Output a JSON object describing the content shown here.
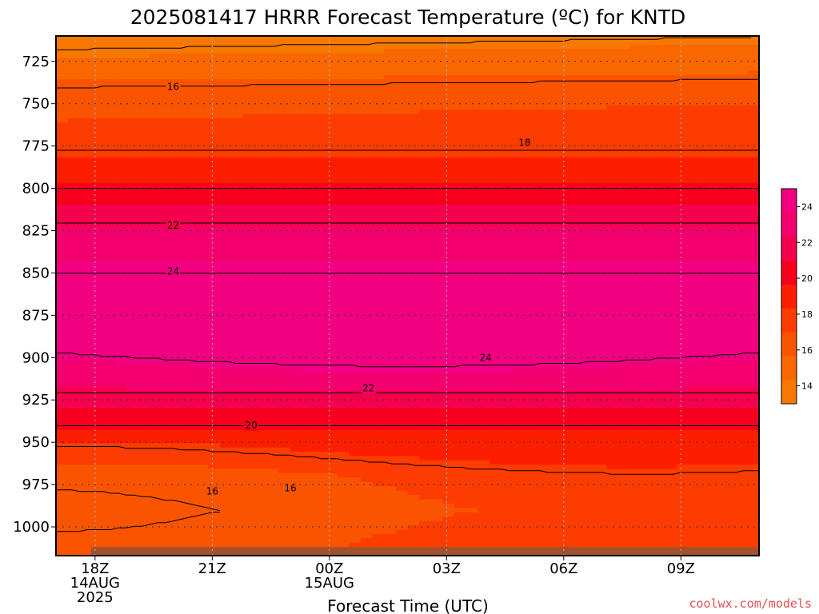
{
  "chart_data": {
    "type": "heatmap",
    "title": "2025081417 HRRR Forecast Temperature (ºC) for KNTD",
    "xlabel": "Forecast Time (UTC)",
    "ylabel": "",
    "x_ticks": [
      {
        "label": "18Z",
        "sub": [
          "14AUG",
          "2025"
        ],
        "hours": 0
      },
      {
        "label": "21Z",
        "sub": [],
        "hours": 3
      },
      {
        "label": "00Z",
        "sub": [
          "15AUG"
        ],
        "hours": 6
      },
      {
        "label": "03Z",
        "sub": [],
        "hours": 9
      },
      {
        "label": "06Z",
        "sub": [],
        "hours": 12
      },
      {
        "label": "09Z",
        "sub": [],
        "hours": 15
      }
    ],
    "xlim_hours": [
      -1,
      17
    ],
    "y_ticks": [
      725,
      750,
      775,
      800,
      825,
      850,
      875,
      900,
      925,
      950,
      975,
      1000
    ],
    "ylim_hpa": [
      710,
      1017
    ],
    "y_inverted": true,
    "grid": true,
    "colorbar": {
      "ticks": [
        "14",
        "16",
        "18",
        "20",
        "22",
        "24"
      ],
      "levels": [
        13,
        14,
        15,
        16,
        17,
        18,
        19,
        20,
        21,
        22,
        23,
        24,
        25
      ],
      "colors": [
        "#f77800",
        "#f96800",
        "#fb5400",
        "#fc3c00",
        "#fd1e00",
        "#f7001e",
        "#f5004c",
        "#f3006e",
        "#f10080"
      ]
    },
    "contour_labels": [
      {
        "text": "16",
        "hours": 2,
        "hpa": 740
      },
      {
        "text": "18",
        "hours": 11,
        "hpa": 773
      },
      {
        "text": "22",
        "hours": 2,
        "hpa": 822
      },
      {
        "text": "24",
        "hours": 2,
        "hpa": 849
      },
      {
        "text": "24",
        "hours": 10,
        "hpa": 900
      },
      {
        "text": "22",
        "hours": 7,
        "hpa": 918
      },
      {
        "text": "20",
        "hours": 4,
        "hpa": 940
      },
      {
        "text": "16",
        "hours": 3,
        "hpa": 979
      },
      {
        "text": "16",
        "hours": 5,
        "hpa": 977
      }
    ],
    "temperature_profile": [
      {
        "hpa": 710,
        "temp_c": 13.5
      },
      {
        "hpa": 725,
        "temp_c": 14.5
      },
      {
        "hpa": 740,
        "temp_c": 16
      },
      {
        "hpa": 770,
        "temp_c": 17.5
      },
      {
        "hpa": 790,
        "temp_c": 19
      },
      {
        "hpa": 810,
        "temp_c": 21
      },
      {
        "hpa": 830,
        "temp_c": 23
      },
      {
        "hpa": 860,
        "temp_c": 24.5
      },
      {
        "hpa": 890,
        "temp_c": 24.5
      },
      {
        "hpa": 910,
        "temp_c": 23
      },
      {
        "hpa": 930,
        "temp_c": 21
      },
      {
        "hpa": 950,
        "temp_c": 19
      },
      {
        "hpa": 970,
        "temp_c": 17
      },
      {
        "hpa": 990,
        "temp_c": 16.5
      },
      {
        "hpa": 1010,
        "temp_c": 17
      }
    ]
  },
  "colors": {
    "ground": "#a0522d",
    "grid": "#bbbbbb",
    "credit": "#e05050"
  },
  "credit": "coolwx.com/models"
}
